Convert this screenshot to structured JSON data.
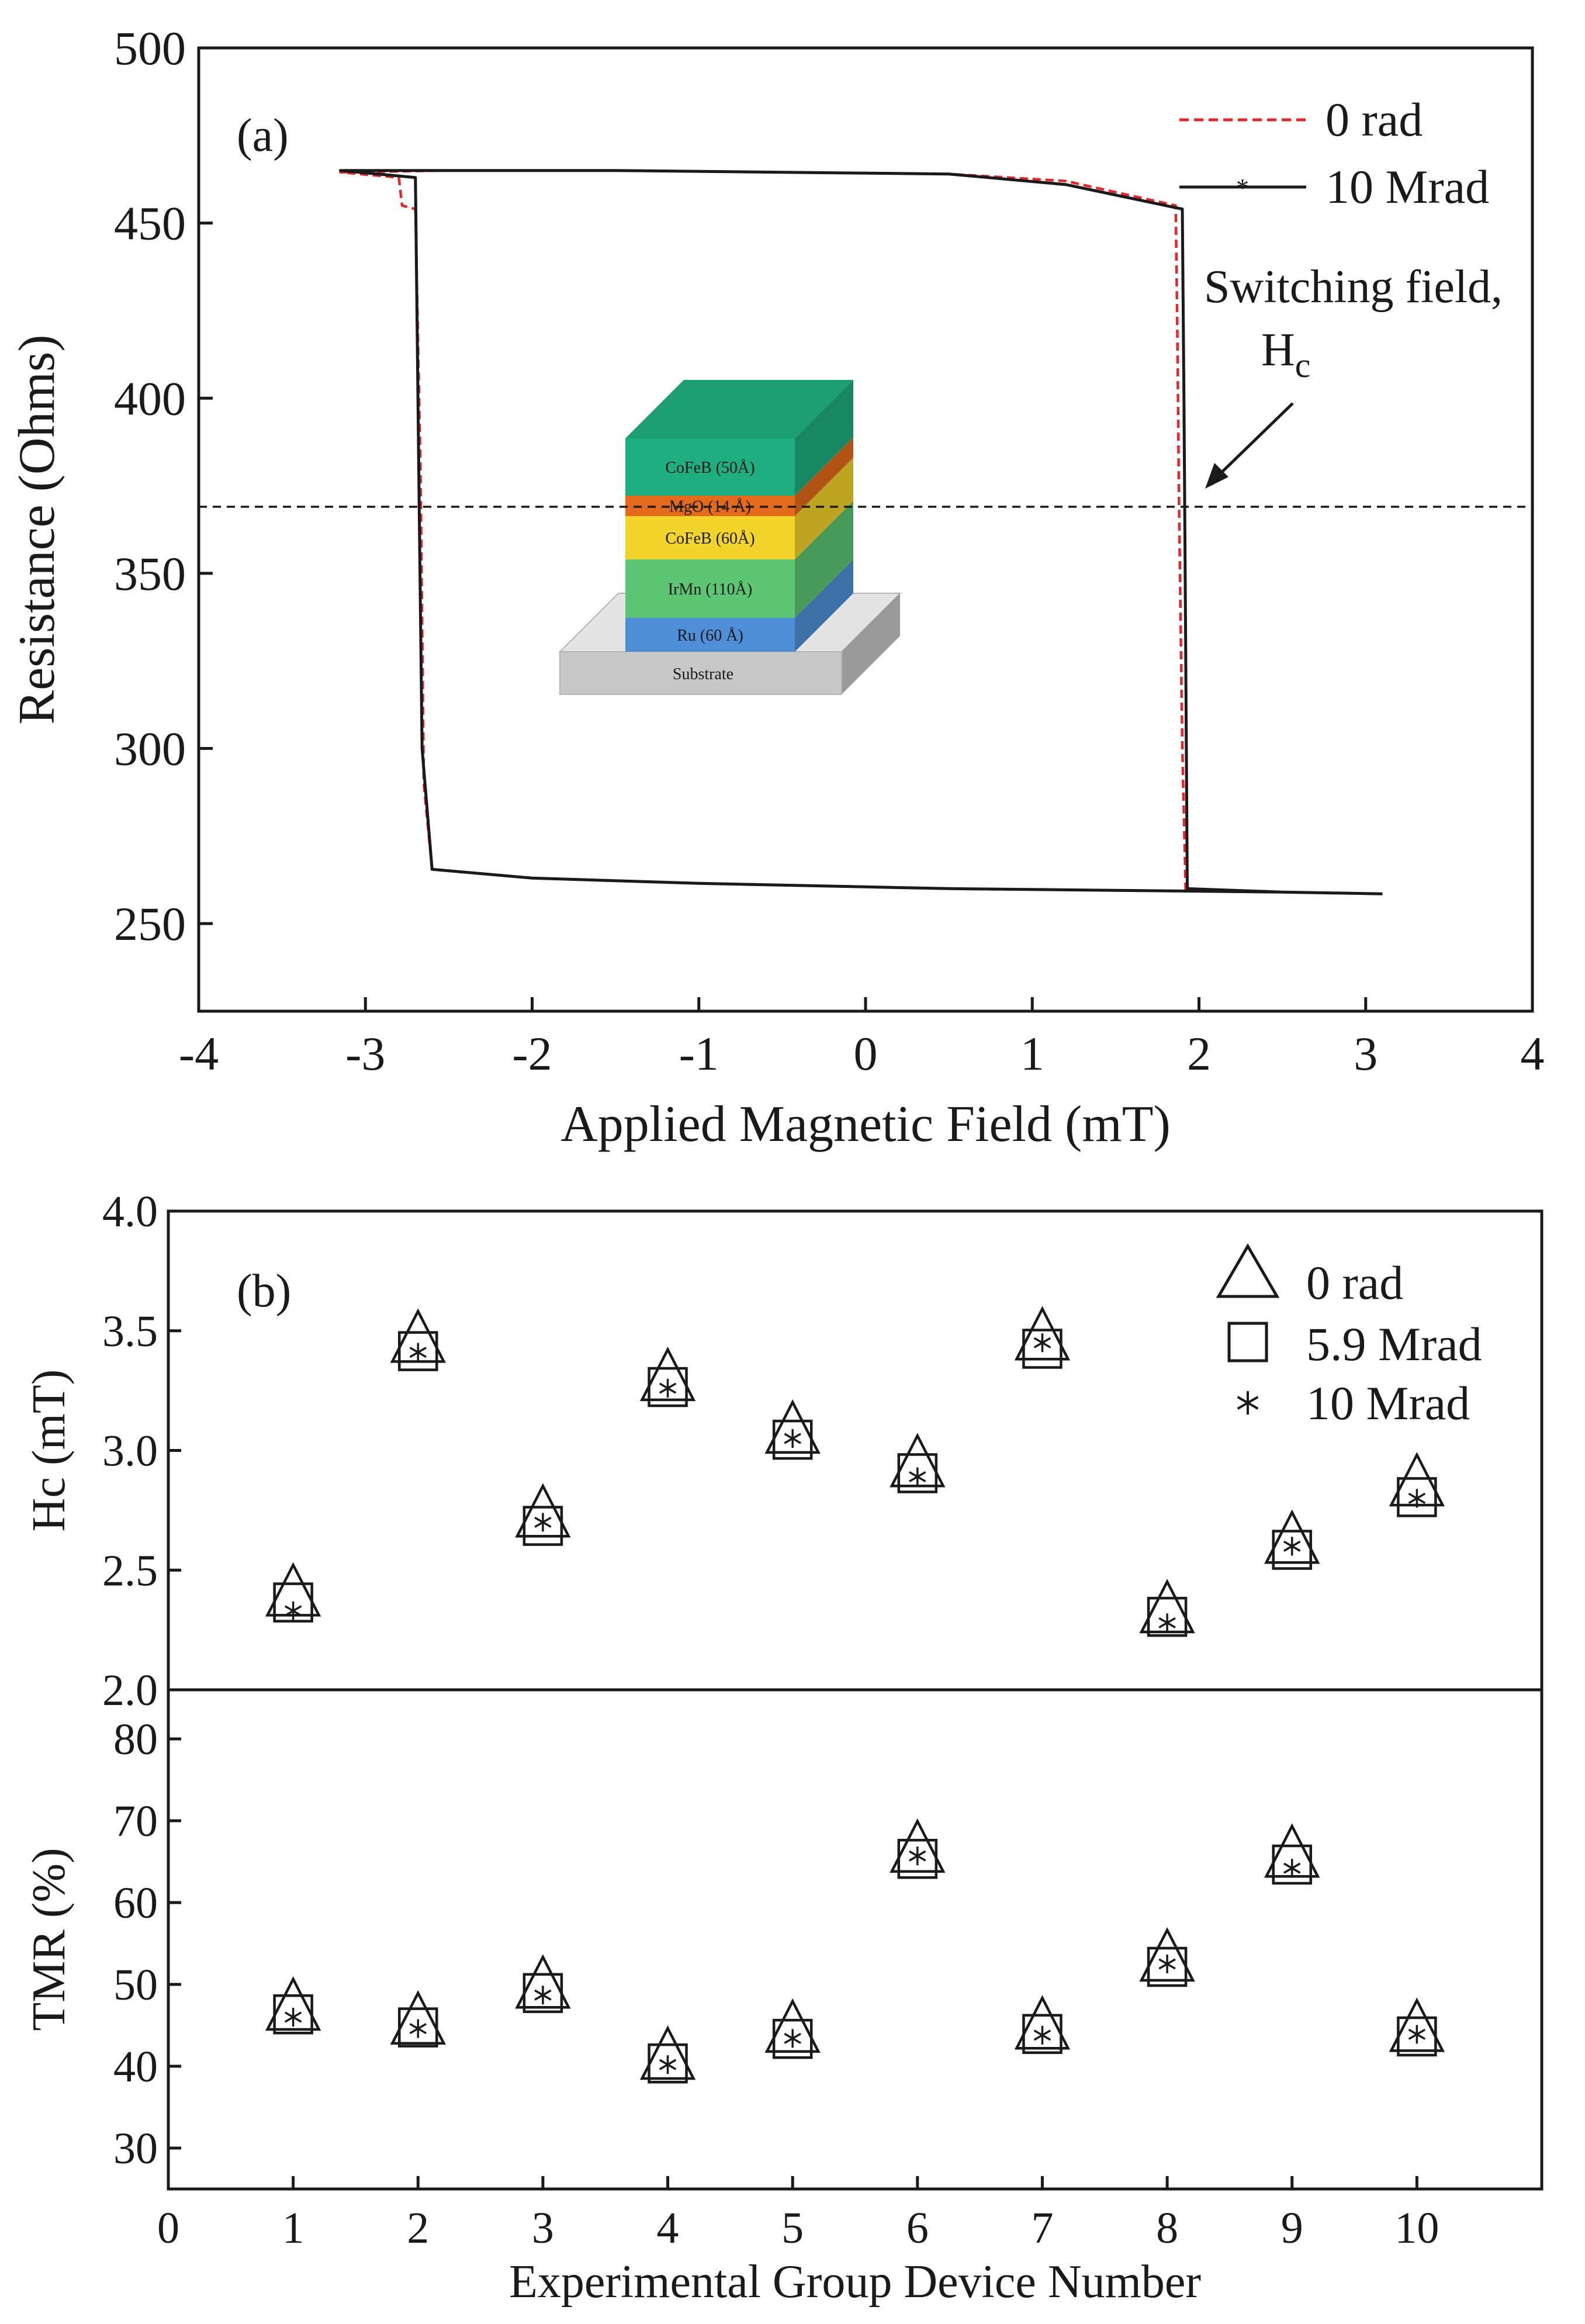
{
  "chart_data": [
    {
      "panel": "(a)",
      "type": "line",
      "xlabel": "Applied Magnetic Field (mT)",
      "ylabel": "Resistance (Ohms)",
      "xlim": [
        -4,
        4
      ],
      "ylim": [
        225,
        500
      ],
      "xticks": [
        -4,
        -3,
        -2,
        -1,
        0,
        1,
        2,
        3,
        4
      ],
      "yticks": [
        250,
        300,
        350,
        400,
        450,
        500
      ],
      "legend_position": "top-right",
      "series": [
        {
          "name": "0 rad",
          "style": "dashed",
          "color": "#e8252a",
          "points": [
            [
              3.1,
              258.5
            ],
            [
              2.5,
              259
            ],
            [
              1.5,
              259.5
            ],
            [
              0.5,
              260
            ],
            [
              0,
              260.5
            ],
            [
              -1,
              261.5
            ],
            [
              -2,
              263
            ],
            [
              -2.6,
              265.5
            ],
            [
              -2.65,
              290
            ],
            [
              -2.67,
              380
            ],
            [
              -2.7,
              454
            ],
            [
              -2.78,
              455
            ],
            [
              -2.8,
              463
            ],
            [
              -3.15,
              464.5
            ],
            [
              -2.5,
              465
            ],
            [
              -1.5,
              465
            ],
            [
              -0.5,
              464.5
            ],
            [
              0.5,
              464
            ],
            [
              1.2,
              462
            ],
            [
              1.86,
              455
            ],
            [
              1.87,
              420
            ],
            [
              1.88,
              370
            ],
            [
              1.9,
              300
            ],
            [
              1.92,
              259.5
            ],
            [
              2.5,
              259
            ],
            [
              3.1,
              258.5
            ]
          ]
        },
        {
          "name": "10 Mrad",
          "style": "solid-star",
          "color": "#1a1a1a",
          "points": [
            [
              3.1,
              258.5
            ],
            [
              2.5,
              259
            ],
            [
              1.5,
              259.5
            ],
            [
              0.5,
              260
            ],
            [
              0,
              260.5
            ],
            [
              -1,
              261.5
            ],
            [
              -2,
              263
            ],
            [
              -2.6,
              265.5
            ],
            [
              -2.66,
              300
            ],
            [
              -2.68,
              380
            ],
            [
              -2.7,
              463
            ],
            [
              -3.15,
              465
            ],
            [
              -2.5,
              465
            ],
            [
              -1.5,
              465
            ],
            [
              -0.5,
              464.5
            ],
            [
              0.5,
              464
            ],
            [
              1.2,
              461
            ],
            [
              1.9,
              454
            ],
            [
              1.91,
              400
            ],
            [
              1.92,
              330
            ],
            [
              1.93,
              260
            ],
            [
              2.5,
              259
            ],
            [
              3.1,
              258.5
            ]
          ]
        }
      ],
      "reference_line": {
        "y": 369,
        "style": "dashed"
      },
      "annotation": {
        "text": "Switching field,",
        "symbol": "H",
        "subscript": "c"
      },
      "inset": {
        "substrate": "Substrate",
        "layers": [
          {
            "label": "Ru (60 Å)",
            "color": "#4f8fd8"
          },
          {
            "label": "IrMn (110Å)",
            "color": "#5cc675"
          },
          {
            "label": "CoFeB (60Å)",
            "color": "#f2d42a"
          },
          {
            "label": "MgO (14 Å)",
            "color": "#e46a1c"
          },
          {
            "label": "CoFeB (50Å)",
            "color": "#1fae7f"
          }
        ]
      }
    },
    {
      "panel": "(b)",
      "type": "scatter",
      "xlabel": "Experimental Group Device Number",
      "xlim": [
        0,
        11
      ],
      "xticks": [
        0,
        1,
        2,
        3,
        4,
        5,
        6,
        7,
        8,
        9,
        10
      ],
      "legend_position": "top-right",
      "legend": [
        {
          "name": "0 rad",
          "marker": "triangle"
        },
        {
          "name": "5.9 Mrad",
          "marker": "square"
        },
        {
          "name": "10 Mrad",
          "marker": "asterisk"
        }
      ],
      "subplots": [
        {
          "ylabel": "Hc (mT)",
          "ylim": [
            2.0,
            4.0
          ],
          "yticks": [
            "2.0",
            "2.5",
            "3.0",
            "3.5",
            "4.0"
          ],
          "x": [
            1,
            2,
            3,
            4,
            5,
            6,
            7,
            8,
            9,
            10
          ],
          "series": [
            {
              "name": "0 rad",
              "values": [
                2.38,
                3.44,
                2.71,
                3.28,
                3.06,
                2.92,
                3.45,
                2.31,
                2.6,
                2.84
              ]
            },
            {
              "name": "5.9 Mrad",
              "values": [
                2.36,
                3.41,
                2.68,
                3.26,
                3.04,
                2.9,
                3.42,
                2.3,
                2.58,
                2.8
              ]
            },
            {
              "name": "10 Mrad",
              "values": [
                2.33,
                3.41,
                2.7,
                3.26,
                3.05,
                2.89,
                3.45,
                2.28,
                2.6,
                2.8
              ]
            }
          ]
        },
        {
          "ylabel": "TMR (%)",
          "ylim": [
            25,
            86
          ],
          "yticks": [
            "30",
            "40",
            "50",
            "60",
            "70",
            "80"
          ],
          "x": [
            1,
            2,
            3,
            4,
            5,
            6,
            7,
            8,
            9,
            10
          ],
          "series": [
            {
              "name": "0 rad",
              "values": [
                46.5,
                44.8,
                49.2,
                40.5,
                43.8,
                65.8,
                44.2,
                52.5,
                65.2,
                43.9
              ]
            },
            {
              "name": "5.9 Mrad",
              "values": [
                46.2,
                44.6,
                48.8,
                40.2,
                43.2,
                65.2,
                43.8,
                52.0,
                64.5,
                43.5
              ]
            },
            {
              "name": "10 Mrad",
              "values": [
                46.0,
                44.6,
                48.7,
                40.2,
                43.4,
                65.7,
                43.8,
                52.5,
                64.2,
                43.9
              ]
            }
          ]
        }
      ]
    }
  ]
}
